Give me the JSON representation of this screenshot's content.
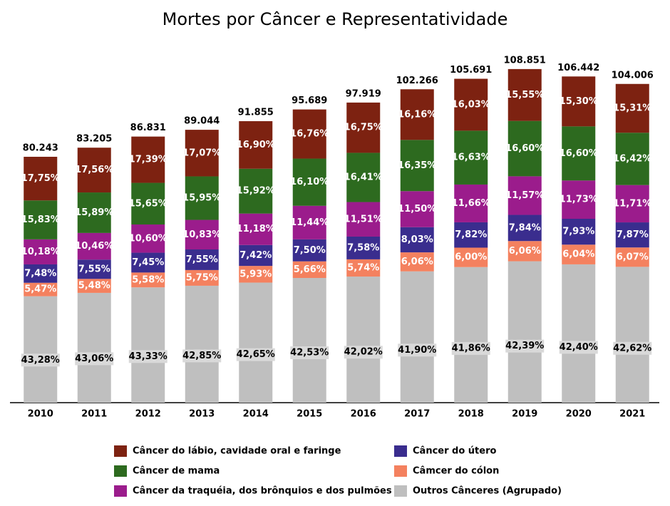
{
  "chart_data": {
    "type": "stacked-bar",
    "title": "Mortes por Câncer e Representatividade",
    "categories": [
      "2010",
      "2011",
      "2012",
      "2013",
      "2014",
      "2015",
      "2016",
      "2017",
      "2018",
      "2019",
      "2020",
      "2021"
    ],
    "ylim": [
      0,
      120000
    ],
    "totals": {
      "values": [
        80243,
        83205,
        86831,
        89044,
        91855,
        95689,
        97919,
        102266,
        105691,
        108851,
        106442,
        104006
      ],
      "value_labels": [
        "80.243",
        "83.205",
        "86.831",
        "89.044",
        "91.855",
        "95.689",
        "97.919",
        "102.266",
        "105.691",
        "108.851",
        "106.442",
        "104.006"
      ]
    },
    "series": [
      {
        "name": "Outros Cânceres (Agrupado)",
        "color": "#bfbfbf",
        "values": [
          43.28,
          43.06,
          43.33,
          42.85,
          42.65,
          42.53,
          42.02,
          41.9,
          41.86,
          42.39,
          42.4,
          42.62
        ],
        "value_labels": [
          "43,28%",
          "43,06%",
          "43,33%",
          "42,85%",
          "42,65%",
          "42,53%",
          "42,02%",
          "41,90%",
          "41,86%",
          "42,39%",
          "42,40%",
          "42,62%"
        ]
      },
      {
        "name": "Câmcer do cólon",
        "color": "#f4815f",
        "values": [
          5.47,
          5.48,
          5.58,
          5.75,
          5.93,
          5.66,
          5.74,
          6.06,
          6.0,
          6.06,
          6.04,
          6.07
        ],
        "value_labels": [
          "5,47%",
          "5,48%",
          "5,58%",
          "5,75%",
          "5,93%",
          "5,66%",
          "5,74%",
          "6,06%",
          "6,00%",
          "6,06%",
          "6,04%",
          "6,07%"
        ]
      },
      {
        "name": "Câncer  do útero",
        "color": "#3a2d8e",
        "values": [
          7.48,
          7.55,
          7.45,
          7.55,
          7.42,
          7.5,
          7.58,
          8.03,
          7.82,
          7.84,
          7.93,
          7.87
        ],
        "value_labels": [
          "7,48%",
          "7,55%",
          "7,45%",
          "7,55%",
          "7,42%",
          "7,50%",
          "7,58%",
          "8,03%",
          "7,82%",
          "7,84%",
          "7,93%",
          "7,87%"
        ]
      },
      {
        "name": "Câncer da traquéia, dos brônquios e dos pulmões",
        "color": "#9b1c8c",
        "values": [
          10.18,
          10.46,
          10.6,
          10.83,
          11.18,
          11.44,
          11.51,
          11.5,
          11.66,
          11.57,
          11.73,
          11.71
        ],
        "value_labels": [
          "10,18%",
          "10,46%",
          "10,60%",
          "10,83%",
          "11,18%",
          "11,44%",
          "11,51%",
          "11,50%",
          "11,66%",
          "11,57%",
          "11,73%",
          "11,71%"
        ]
      },
      {
        "name": "Câncer de mama",
        "color": "#2d6a1f",
        "values": [
          15.83,
          15.89,
          15.65,
          15.95,
          15.92,
          16.1,
          16.41,
          16.35,
          16.63,
          16.6,
          16.6,
          16.42
        ],
        "value_labels": [
          "15,83%",
          "15,89%",
          "15,65%",
          "15,95%",
          "15,92%",
          "16,10%",
          "16,41%",
          "16,35%",
          "16,63%",
          "16,60%",
          "16,60%",
          "16,42%"
        ]
      },
      {
        "name": "Câncer do lábio, cavidade oral e faringe",
        "color": "#7d2211",
        "values": [
          17.75,
          17.56,
          17.39,
          17.07,
          16.9,
          16.76,
          16.75,
          16.16,
          16.03,
          15.55,
          15.3,
          15.31
        ],
        "value_labels": [
          "17,75%",
          "17,56%",
          "17,39%",
          "17,07%",
          "16,90%",
          "16,76%",
          "16,75%",
          "16,16%",
          "16,03%",
          "15,55%",
          "15,30%",
          "15,31%"
        ]
      }
    ]
  }
}
